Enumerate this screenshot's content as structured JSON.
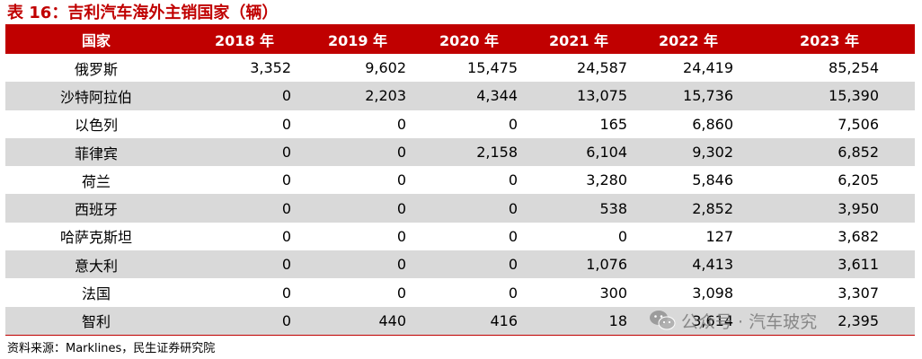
{
  "title": "表 16：吉利汽车海外主销国家（辆）",
  "table": {
    "headers": [
      "国家",
      "2018 年",
      "2019 年",
      "2020 年",
      "2021 年",
      "2022 年",
      "2023 年"
    ],
    "rows": [
      [
        "俄罗斯",
        "3,352",
        "9,602",
        "15,475",
        "24,587",
        "24,419",
        "85,254"
      ],
      [
        "沙特阿拉伯",
        "0",
        "2,203",
        "4,344",
        "13,075",
        "15,736",
        "15,390"
      ],
      [
        "以色列",
        "0",
        "0",
        "0",
        "165",
        "6,860",
        "7,506"
      ],
      [
        "菲律宾",
        "0",
        "0",
        "2,158",
        "6,104",
        "9,302",
        "6,852"
      ],
      [
        "荷兰",
        "0",
        "0",
        "0",
        "3,280",
        "5,846",
        "6,205"
      ],
      [
        "西班牙",
        "0",
        "0",
        "0",
        "538",
        "2,852",
        "3,950"
      ],
      [
        "哈萨克斯坦",
        "0",
        "0",
        "0",
        "0",
        "127",
        "3,682"
      ],
      [
        "意大利",
        "0",
        "0",
        "0",
        "1,076",
        "4,413",
        "3,611"
      ],
      [
        "法国",
        "0",
        "0",
        "0",
        "300",
        "3,098",
        "3,307"
      ],
      [
        "智利",
        "0",
        "440",
        "416",
        "18",
        "3,614",
        "2,395"
      ]
    ]
  },
  "source": "资料来源：Marklines，民生证券研究院",
  "watermark": {
    "text": "公众号 · 汽车玻究",
    "icon": "wechat-icon"
  },
  "colors": {
    "accent": "#c00000",
    "header_text": "#ffffff",
    "row_shade": "#d9d9d9"
  }
}
